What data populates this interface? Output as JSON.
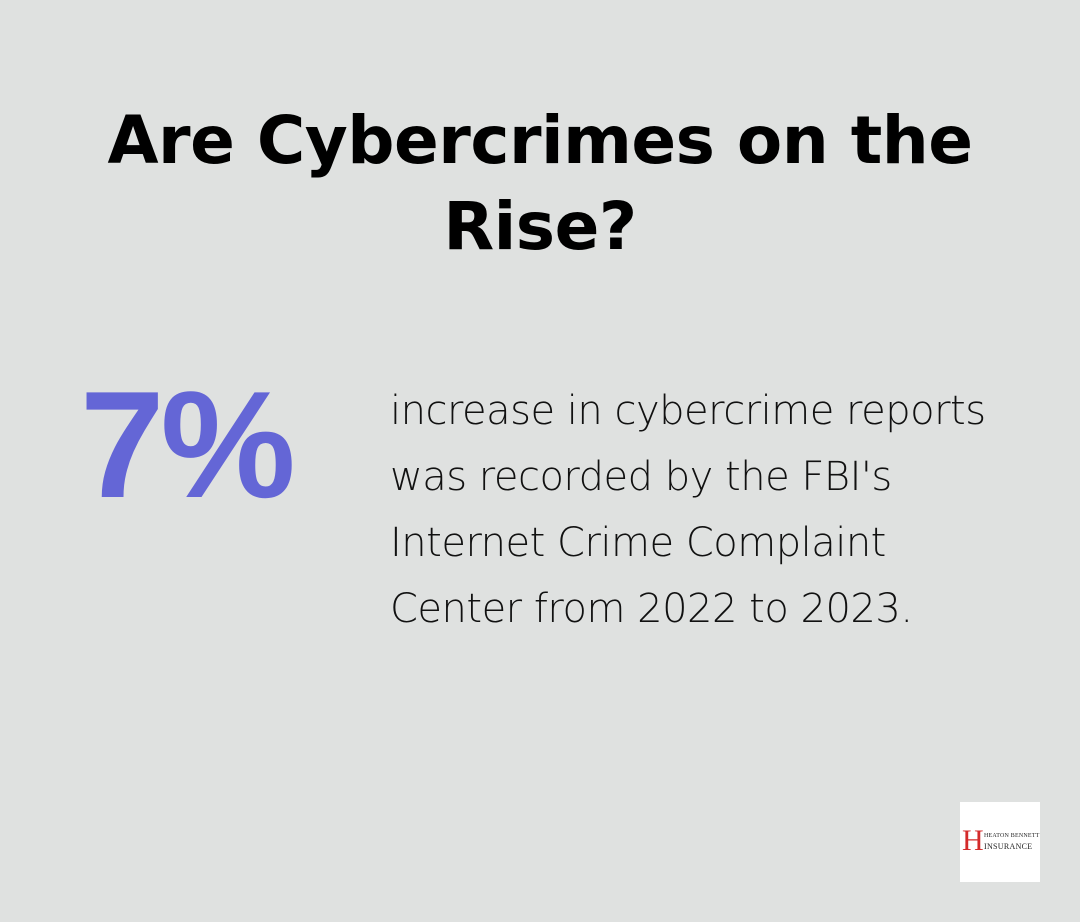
{
  "title": "Are Cybercrimes on the Rise?",
  "stat": {
    "value": "7%",
    "color": "#6466d6"
  },
  "description": "increase in cybercrime reports was recorded by the FBI's Internet Crime Complaint Center from 2022 to 2023.",
  "logo": {
    "letter": "H",
    "line1": "HEATON BENNETT",
    "line2": "INSURANCE",
    "color": "#d42a2a"
  }
}
